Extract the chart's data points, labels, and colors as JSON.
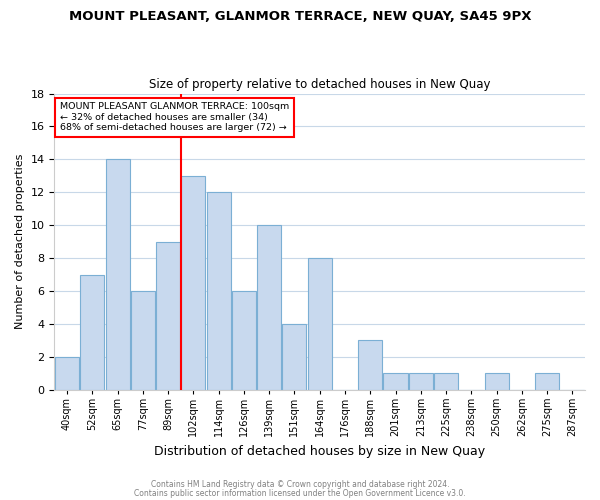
{
  "title": "MOUNT PLEASANT, GLANMOR TERRACE, NEW QUAY, SA45 9PX",
  "subtitle": "Size of property relative to detached houses in New Quay",
  "xlabel": "Distribution of detached houses by size in New Quay",
  "ylabel": "Number of detached properties",
  "bin_labels": [
    "40sqm",
    "52sqm",
    "65sqm",
    "77sqm",
    "89sqm",
    "102sqm",
    "114sqm",
    "126sqm",
    "139sqm",
    "151sqm",
    "164sqm",
    "176sqm",
    "188sqm",
    "201sqm",
    "213sqm",
    "225sqm",
    "238sqm",
    "250sqm",
    "262sqm",
    "275sqm",
    "287sqm"
  ],
  "num_bins": 21,
  "counts": [
    2,
    7,
    14,
    6,
    9,
    13,
    12,
    6,
    10,
    4,
    8,
    0,
    3,
    1,
    1,
    1,
    0,
    1,
    0,
    1,
    0
  ],
  "bar_color": "#c8d9ee",
  "bar_edge_color": "#7bafd4",
  "marker_bin": 5,
  "marker_color": "red",
  "annotation_title": "MOUNT PLEASANT GLANMOR TERRACE: 100sqm",
  "annotation_line1": "← 32% of detached houses are smaller (34)",
  "annotation_line2": "68% of semi-detached houses are larger (72) →",
  "ylim": [
    0,
    18
  ],
  "yticks": [
    0,
    2,
    4,
    6,
    8,
    10,
    12,
    14,
    16,
    18
  ],
  "footer1": "Contains HM Land Registry data © Crown copyright and database right 2024.",
  "footer2": "Contains public sector information licensed under the Open Government Licence v3.0."
}
